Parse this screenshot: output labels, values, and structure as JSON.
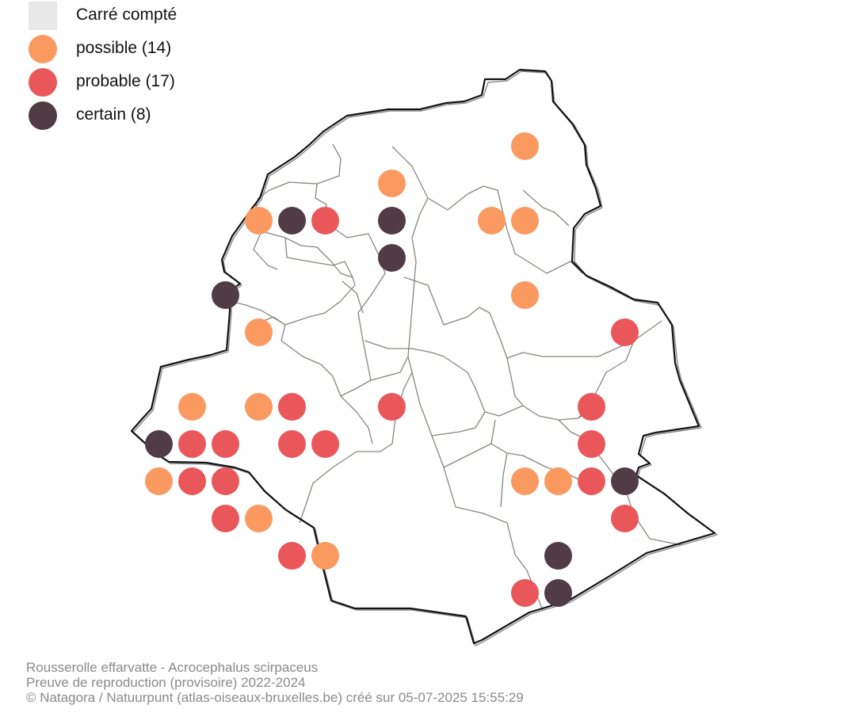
{
  "legend": {
    "counted": {
      "label": "Carré compté",
      "color": "#e8e8e8"
    },
    "possible": {
      "label": "possible (14)",
      "color": "#fa9a61"
    },
    "probable": {
      "label": "probable (17)",
      "color": "#e9575a"
    },
    "certain": {
      "label": "certain (8)",
      "color": "#513b44"
    }
  },
  "caption": {
    "species": "Rousserolle effarvatte - Acrocephalus scirpaceus",
    "subtitle": "Preuve de reproduction (provisoire) 2022-2024",
    "credit": "© Natagora / Natuurpunt (atlas-oiseaux-bruxelles.be) créé sur 05-07-2025 15:55:29"
  },
  "map": {
    "region": "Bruxelles",
    "boundary_color": "#111111",
    "commune_color": "#8a847d",
    "grid": {
      "columns_x": [
        "A",
        "B",
        "C",
        "D",
        "E",
        "F",
        "G",
        "H",
        "I",
        "J",
        "K",
        "L",
        "M",
        "N",
        "O",
        "P"
      ],
      "rows_y": 16
    },
    "observations": [
      {
        "col": 12,
        "row": 2,
        "status": "possible"
      },
      {
        "col": 8,
        "row": 3,
        "status": "possible"
      },
      {
        "col": 4,
        "row": 4,
        "status": "possible"
      },
      {
        "col": 5,
        "row": 4,
        "status": "certain"
      },
      {
        "col": 6,
        "row": 4,
        "status": "probable"
      },
      {
        "col": 8,
        "row": 4,
        "status": "certain"
      },
      {
        "col": 11,
        "row": 4,
        "status": "possible"
      },
      {
        "col": 12,
        "row": 4,
        "status": "possible"
      },
      {
        "col": 8,
        "row": 5,
        "status": "certain"
      },
      {
        "col": 3,
        "row": 6,
        "status": "certain"
      },
      {
        "col": 12,
        "row": 6,
        "status": "possible"
      },
      {
        "col": 4,
        "row": 7,
        "status": "possible"
      },
      {
        "col": 15,
        "row": 7,
        "status": "probable"
      },
      {
        "col": 2,
        "row": 9,
        "status": "possible"
      },
      {
        "col": 4,
        "row": 9,
        "status": "possible"
      },
      {
        "col": 5,
        "row": 9,
        "status": "probable"
      },
      {
        "col": 8,
        "row": 9,
        "status": "probable"
      },
      {
        "col": 14,
        "row": 9,
        "status": "probable"
      },
      {
        "col": 1,
        "row": 10,
        "status": "certain"
      },
      {
        "col": 2,
        "row": 10,
        "status": "probable"
      },
      {
        "col": 3,
        "row": 10,
        "status": "probable"
      },
      {
        "col": 5,
        "row": 10,
        "status": "probable"
      },
      {
        "col": 6,
        "row": 10,
        "status": "probable"
      },
      {
        "col": 14,
        "row": 10,
        "status": "probable"
      },
      {
        "col": 1,
        "row": 11,
        "status": "possible"
      },
      {
        "col": 2,
        "row": 11,
        "status": "probable"
      },
      {
        "col": 3,
        "row": 11,
        "status": "probable"
      },
      {
        "col": 12,
        "row": 11,
        "status": "possible"
      },
      {
        "col": 13,
        "row": 11,
        "status": "possible"
      },
      {
        "col": 14,
        "row": 11,
        "status": "probable"
      },
      {
        "col": 15,
        "row": 11,
        "status": "certain"
      },
      {
        "col": 3,
        "row": 12,
        "status": "probable"
      },
      {
        "col": 4,
        "row": 12,
        "status": "possible"
      },
      {
        "col": 15,
        "row": 12,
        "status": "probable"
      },
      {
        "col": 5,
        "row": 13,
        "status": "probable"
      },
      {
        "col": 6,
        "row": 13,
        "status": "possible"
      },
      {
        "col": 13,
        "row": 13,
        "status": "certain"
      },
      {
        "col": 12,
        "row": 14,
        "status": "probable"
      },
      {
        "col": 13,
        "row": 14,
        "status": "certain"
      }
    ]
  }
}
